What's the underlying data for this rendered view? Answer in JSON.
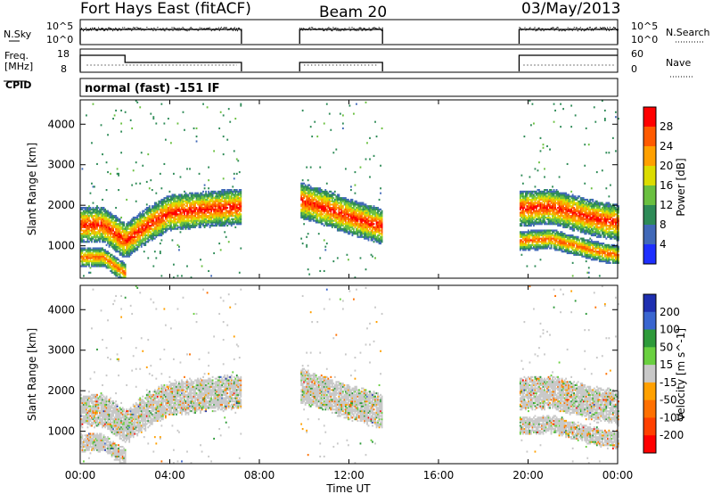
{
  "header": {
    "station": "Fort Hays East (fitACF)",
    "beam": "Beam 20",
    "date": "03/May/2013"
  },
  "labels": {
    "nsky": "N.Sky",
    "nsearch": "N.Search",
    "freq": "Freq.",
    "mhz": "[MHz]",
    "nave": "Nave",
    "cpid": "CPID",
    "program": "normal (fast) -151 IF",
    "nsky_ticks": [
      "10^5",
      "10^0"
    ],
    "nsearch_ticks": [
      "10^5",
      "10^0"
    ],
    "freq_ticks": [
      "18",
      "8"
    ],
    "nave_ticks": [
      "60",
      "0"
    ]
  },
  "chart_data": [
    {
      "type": "heatmap",
      "name": "power-panel",
      "ylabel": "Slant Range [km]",
      "xlabel": "Time UT",
      "x_ticks": [
        "00:00",
        "04:00",
        "08:00",
        "12:00",
        "16:00",
        "20:00",
        "00:00"
      ],
      "xlim_hours": [
        0,
        24
      ],
      "ylim_km": [
        200,
        4600
      ],
      "y_ticks": [
        1000,
        2000,
        3000,
        4000
      ],
      "colorbar": {
        "label": "Power [dB]",
        "ticks": [
          "28",
          "24",
          "20",
          "16",
          "12",
          "8",
          "4"
        ],
        "colors": [
          "#ff0000",
          "#ff5a00",
          "#ffa000",
          "#dcdc00",
          "#6ac040",
          "#2e8b57",
          "#4169b8",
          "#1e2fff"
        ]
      },
      "data_gaps_hours": [
        [
          7.2,
          9.8
        ],
        [
          13.5,
          19.6
        ]
      ],
      "echo_bands": [
        {
          "note": "main band",
          "t": [
            0,
            1,
            2,
            3,
            4,
            5,
            6,
            7.2
          ],
          "range_km": [
            1500,
            1500,
            1100,
            1500,
            1800,
            1850,
            1900,
            1950
          ]
        },
        {
          "note": "main band",
          "t": [
            9.8,
            11,
            12,
            13.5
          ],
          "range_km": [
            2100,
            1900,
            1700,
            1450
          ]
        },
        {
          "note": "main band",
          "t": [
            19.6,
            21,
            22,
            23,
            24
          ],
          "range_km": [
            1900,
            1950,
            1800,
            1650,
            1550
          ]
        }
      ]
    },
    {
      "type": "heatmap",
      "name": "velocity-panel",
      "ylabel": "Slant Range [km]",
      "xlabel": "Time UT",
      "x_ticks": [
        "00:00",
        "04:00",
        "08:00",
        "12:00",
        "16:00",
        "20:00",
        "00:00"
      ],
      "xlim_hours": [
        0,
        24
      ],
      "ylim_km": [
        200,
        4600
      ],
      "y_ticks": [
        1000,
        2000,
        3000,
        4000
      ],
      "colorbar": {
        "label": "Velocity [m s^-1]",
        "ticks": [
          "200",
          "100",
          "50",
          "15",
          "-15",
          "-50",
          "-100",
          "-200"
        ],
        "colors": [
          "#1e2fb0",
          "#3a66d0",
          "#2e9a3a",
          "#6ad040",
          "#c8c8c8",
          "#ffa000",
          "#ff7000",
          "#ff4000",
          "#ff0000"
        ]
      }
    }
  ],
  "xaxis_title": "Time UT",
  "x_tick_labels": [
    "00:00",
    "04:00",
    "08:00",
    "12:00",
    "16:00",
    "20:00",
    "00:00"
  ]
}
